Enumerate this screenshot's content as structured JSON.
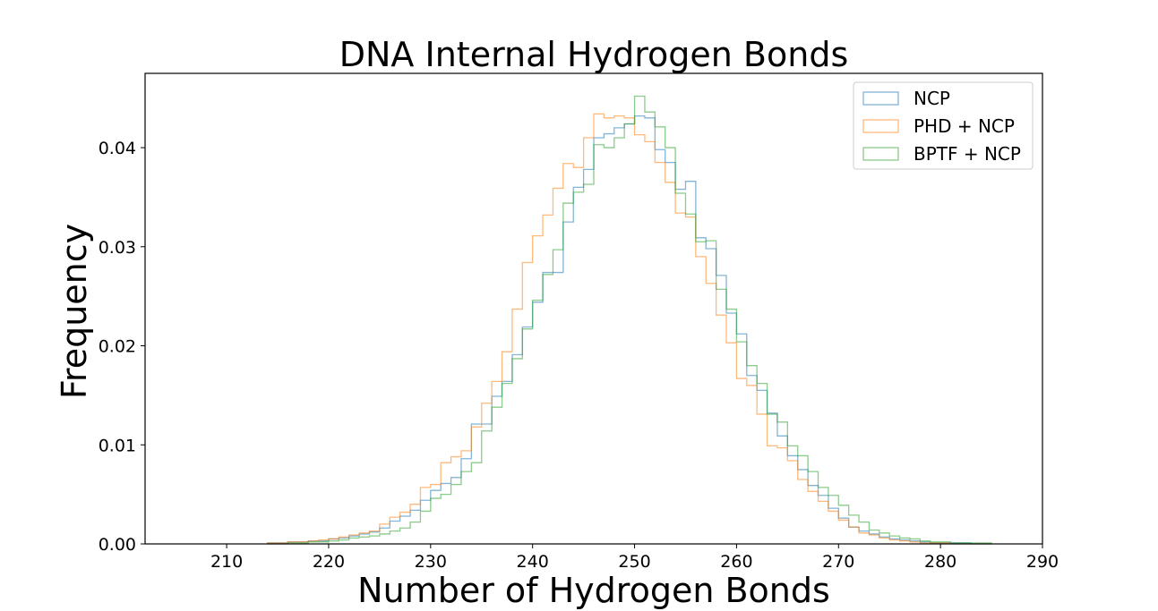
{
  "chart_data": {
    "type": "histogram",
    "title": "DNA Internal Hydrogen Bonds",
    "xlabel": "Number of Hydrogen Bonds",
    "ylabel": "Frequency",
    "xlim": [
      202,
      290
    ],
    "ylim": [
      0,
      0.0475
    ],
    "xticks": [
      210,
      220,
      230,
      240,
      250,
      260,
      270,
      280,
      290
    ],
    "xtick_labels": [
      "210",
      "220",
      "230",
      "240",
      "250",
      "260",
      "270",
      "280",
      "290"
    ],
    "yticks": [
      0,
      0.01,
      0.02,
      0.03,
      0.04
    ],
    "ytick_labels": [
      "0.00",
      "0.01",
      "0.02",
      "0.03",
      "0.04"
    ],
    "grid": false,
    "legend_position": "top-right",
    "bin_edges": [
      214,
      215,
      216,
      217,
      218,
      219,
      220,
      221,
      222,
      223,
      224,
      225,
      226,
      227,
      228,
      229,
      230,
      231,
      232,
      233,
      234,
      235,
      236,
      237,
      238,
      239,
      240,
      241,
      242,
      243,
      244,
      245,
      246,
      247,
      248,
      249,
      250,
      251,
      252,
      253,
      254,
      255,
      256,
      257,
      258,
      259,
      260,
      261,
      262,
      263,
      264,
      265,
      266,
      267,
      268,
      269,
      270,
      271,
      272,
      273,
      274,
      275,
      276,
      277,
      278,
      279,
      280,
      281,
      282,
      283,
      284,
      285
    ],
    "series": [
      {
        "name": "NCP",
        "color": "#1f77b4",
        "values": [
          0.0001,
          0.0001,
          0.0002,
          0.0002,
          0.0003,
          0.0003,
          0.0005,
          0.0006,
          0.0008,
          0.001,
          0.0012,
          0.0016,
          0.0023,
          0.0028,
          0.0034,
          0.0044,
          0.0054,
          0.0061,
          0.0067,
          0.0086,
          0.0121,
          0.0121,
          0.0149,
          0.0164,
          0.0191,
          0.0219,
          0.0244,
          0.0274,
          0.0274,
          0.0325,
          0.036,
          0.0378,
          0.041,
          0.0414,
          0.042,
          0.0424,
          0.0432,
          0.043,
          0.0398,
          0.0385,
          0.0358,
          0.0366,
          0.0309,
          0.0298,
          0.0271,
          0.0233,
          0.0212,
          0.017,
          0.0155,
          0.0132,
          0.0109,
          0.0089,
          0.0075,
          0.0059,
          0.0049,
          0.0036,
          0.0026,
          0.0017,
          0.0013,
          0.001,
          0.0007,
          0.0005,
          0.0004,
          0.0003,
          0.0002,
          0.0001,
          0.0001,
          0.0001,
          0.0001,
          0.0,
          0.0
        ]
      },
      {
        "name": "PHD + NCP",
        "color": "#ff7f0e",
        "values": [
          0.0001,
          0.0001,
          0.0002,
          0.0002,
          0.0003,
          0.0004,
          0.0005,
          0.0007,
          0.0009,
          0.0011,
          0.0013,
          0.002,
          0.0027,
          0.0032,
          0.004,
          0.0057,
          0.006,
          0.0082,
          0.0088,
          0.0094,
          0.0118,
          0.0142,
          0.0164,
          0.0194,
          0.0237,
          0.0284,
          0.0311,
          0.0332,
          0.0359,
          0.0384,
          0.038,
          0.041,
          0.0434,
          0.043,
          0.0432,
          0.043,
          0.0413,
          0.0406,
          0.0385,
          0.0365,
          0.0334,
          0.033,
          0.029,
          0.0263,
          0.0231,
          0.0203,
          0.0167,
          0.016,
          0.0131,
          0.0099,
          0.0097,
          0.0084,
          0.0065,
          0.0053,
          0.0043,
          0.0033,
          0.0024,
          0.0017,
          0.0011,
          0.0009,
          0.0006,
          0.0004,
          0.0003,
          0.0002,
          0.0001,
          0.0001,
          0.0001,
          0.0,
          0.0,
          0.0,
          0.0
        ]
      },
      {
        "name": "BPTF + NCP",
        "color": "#2ca02c",
        "values": [
          0.0,
          0.0,
          0.0001,
          0.0001,
          0.0002,
          0.0002,
          0.0003,
          0.0004,
          0.0006,
          0.0007,
          0.0008,
          0.001,
          0.0013,
          0.0016,
          0.0022,
          0.0033,
          0.0046,
          0.005,
          0.006,
          0.0073,
          0.0082,
          0.0114,
          0.0138,
          0.0162,
          0.0187,
          0.0217,
          0.0246,
          0.0272,
          0.0297,
          0.0344,
          0.0355,
          0.0363,
          0.0403,
          0.04,
          0.041,
          0.0424,
          0.0452,
          0.0436,
          0.0421,
          0.04,
          0.0354,
          0.0333,
          0.0305,
          0.0306,
          0.0257,
          0.0237,
          0.0204,
          0.018,
          0.0162,
          0.0131,
          0.0123,
          0.0099,
          0.0089,
          0.0073,
          0.0057,
          0.0049,
          0.0039,
          0.0029,
          0.0022,
          0.0014,
          0.0011,
          0.0008,
          0.0006,
          0.0005,
          0.0003,
          0.0002,
          0.0002,
          0.0001,
          0.0001,
          0.0001,
          0.0001
        ]
      }
    ]
  }
}
